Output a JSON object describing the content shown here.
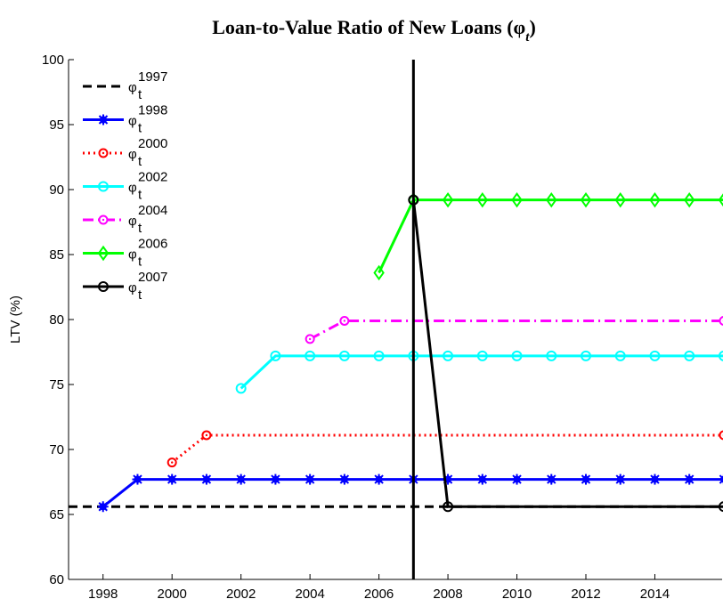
{
  "chart_data": {
    "type": "line",
    "title": "Loan-to-Value Ratio of New Loans (φ",
    "title_subscript": "t",
    "title_end": ")",
    "y_label": "LTV (%)",
    "xlim": [
      1997,
      2015.95
    ],
    "xticks": [
      1998,
      2000,
      2002,
      2004,
      2006,
      2008,
      2010,
      2012,
      2014
    ],
    "ylim": [
      60,
      100
    ],
    "yticks": [
      60,
      65,
      70,
      75,
      80,
      85,
      90,
      95,
      100
    ],
    "vline": 2007,
    "vline_color": "#000000",
    "legend": "upper left",
    "series": [
      {
        "name": "φ",
        "subscript": "t",
        "superscript": "1997",
        "color": "#000000",
        "dash": "dashed",
        "marker": "none",
        "x": [
          1997,
          2016
        ],
        "values": [
          65.6,
          65.6
        ]
      },
      {
        "name": "φ",
        "subscript": "t",
        "superscript": "1998",
        "color": "#0000ff",
        "dash": "solid",
        "marker": "star",
        "x": [
          1998,
          1999,
          2000,
          2001,
          2002,
          2003,
          2004,
          2005,
          2006,
          2007,
          2008,
          2009,
          2010,
          2011,
          2012,
          2013,
          2014,
          2015,
          2016
        ],
        "values": [
          65.6,
          67.7,
          67.7,
          67.7,
          67.7,
          67.7,
          67.7,
          67.7,
          67.7,
          67.7,
          67.7,
          67.7,
          67.7,
          67.7,
          67.7,
          67.7,
          67.7,
          67.7,
          67.7
        ]
      },
      {
        "name": "φ",
        "subscript": "t",
        "superscript": "2000",
        "color": "#ff0000",
        "dash": "dotted",
        "marker": "dot-circle",
        "x": [
          2000,
          2001,
          2016
        ],
        "values": [
          69.0,
          71.1,
          71.1
        ]
      },
      {
        "name": "φ",
        "subscript": "t",
        "superscript": "2002",
        "color": "#00ffff",
        "dash": "solid",
        "marker": "circle",
        "x": [
          2002,
          2003,
          2004,
          2005,
          2006,
          2007,
          2008,
          2009,
          2010,
          2011,
          2012,
          2013,
          2014,
          2015,
          2016
        ],
        "values": [
          74.7,
          77.2,
          77.2,
          77.2,
          77.2,
          77.2,
          77.2,
          77.2,
          77.2,
          77.2,
          77.2,
          77.2,
          77.2,
          77.2,
          77.2
        ]
      },
      {
        "name": "φ",
        "subscript": "t",
        "superscript": "2004",
        "color": "#ff00ff",
        "dash": "dashdot",
        "marker": "dot-circle",
        "x": [
          2004,
          2005,
          2016
        ],
        "values": [
          78.5,
          79.9,
          79.9
        ]
      },
      {
        "name": "φ",
        "subscript": "t",
        "superscript": "2006",
        "color": "#00ff00",
        "dash": "solid",
        "marker": "diamond",
        "x": [
          2006,
          2007,
          2008,
          2009,
          2010,
          2011,
          2012,
          2013,
          2014,
          2015,
          2016
        ],
        "values": [
          83.6,
          89.2,
          89.2,
          89.2,
          89.2,
          89.2,
          89.2,
          89.2,
          89.2,
          89.2,
          89.2
        ]
      },
      {
        "name": "φ",
        "subscript": "t",
        "superscript": "2007",
        "color": "#000000",
        "dash": "solid",
        "marker": "circle",
        "x": [
          2007,
          2008,
          2016
        ],
        "values": [
          89.2,
          65.6,
          65.6
        ]
      }
    ]
  }
}
